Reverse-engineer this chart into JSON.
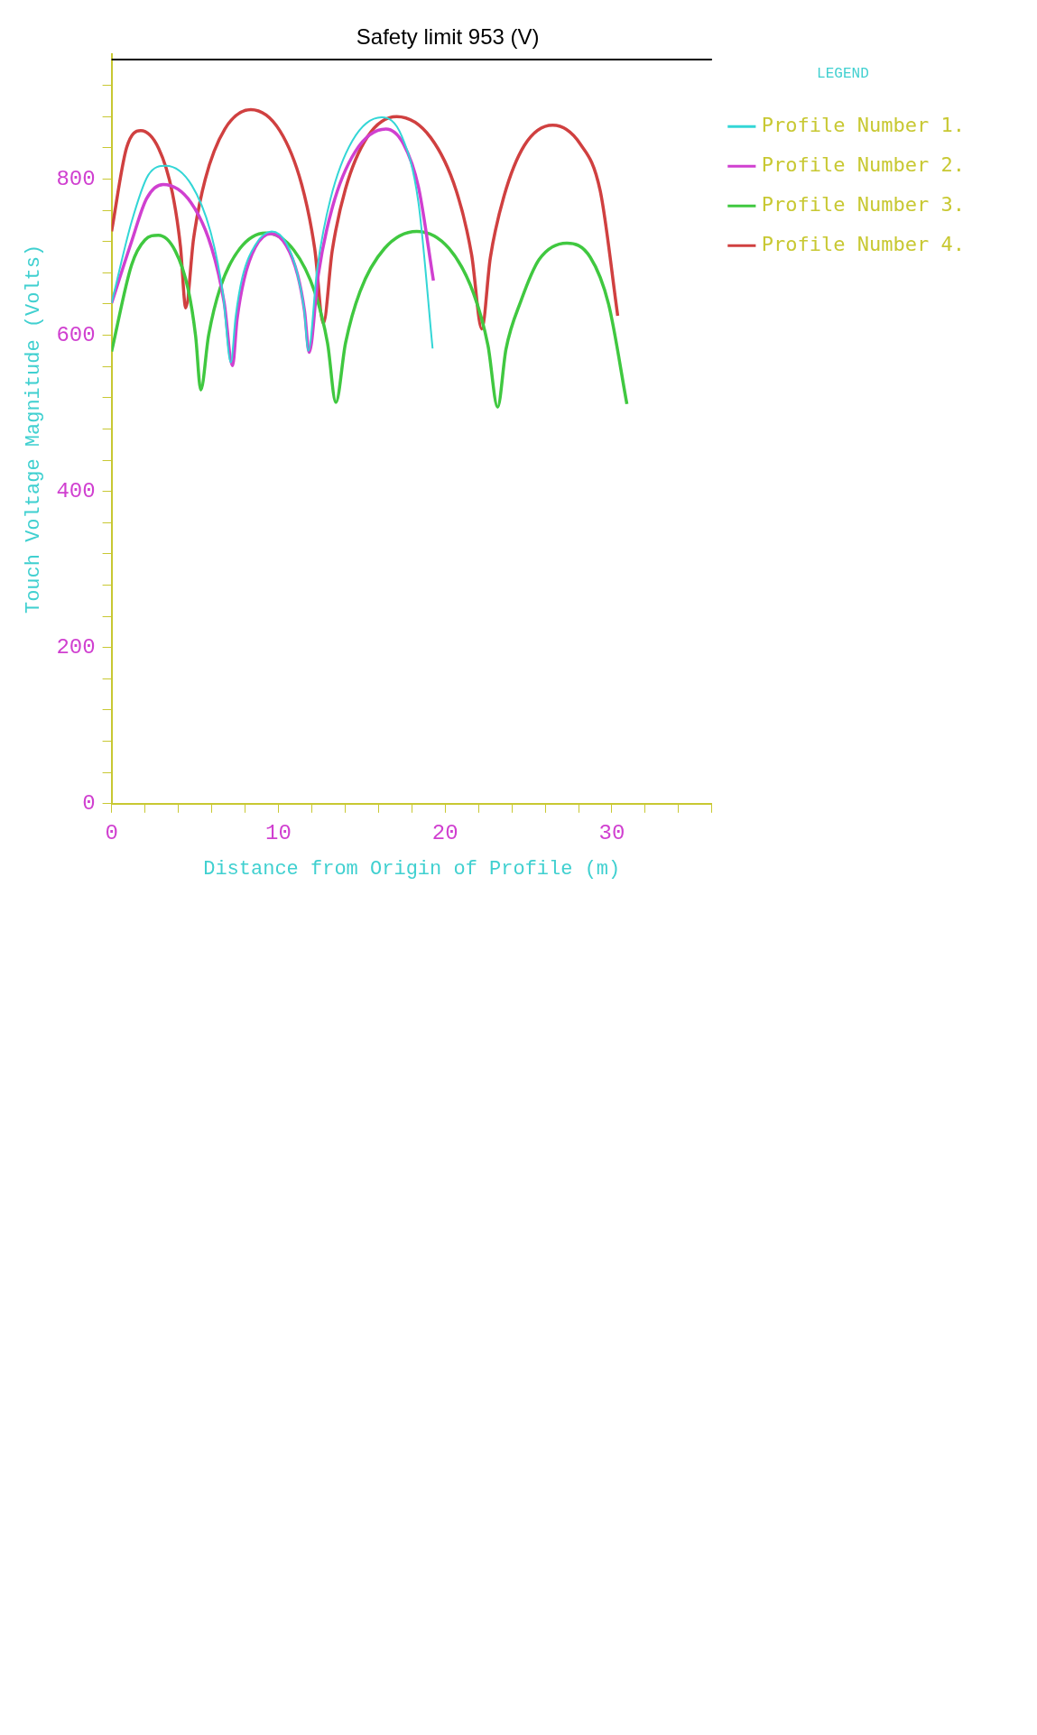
{
  "chart_data": {
    "type": "line",
    "xlabel": "Distance from Origin of Profile (m)",
    "ylabel": "Touch Voltage Magnitude (Volts)",
    "xlim": [
      0,
      36
    ],
    "xticks": [
      0,
      {
        "value": 2,
        "label": null
      },
      {
        "value": 4,
        "label": null
      },
      {
        "value": 6,
        "label": null
      },
      {
        "value": 8,
        "label": null
      },
      10,
      {
        "value": 12,
        "label": null
      },
      {
        "value": 14,
        "label": null
      },
      {
        "value": 16,
        "label": null
      },
      {
        "value": 18,
        "label": null
      },
      20,
      {
        "value": 22,
        "label": null
      },
      {
        "value": 24,
        "label": null
      },
      {
        "value": 26,
        "label": null
      },
      {
        "value": 28,
        "label": null
      },
      30,
      {
        "value": 32,
        "label": null
      },
      {
        "value": 34,
        "label": null
      },
      {
        "value": 36,
        "label": null
      }
    ],
    "ylim": [
      0,
      960
    ],
    "yticks": [
      0,
      {
        "value": 40,
        "label": null
      },
      {
        "value": 80,
        "label": null
      },
      {
        "value": 120,
        "label": null
      },
      {
        "value": 160,
        "label": null
      },
      200,
      {
        "value": 240,
        "label": null
      },
      {
        "value": 280,
        "label": null
      },
      {
        "value": 320,
        "label": null
      },
      {
        "value": 360,
        "label": null
      },
      400,
      {
        "value": 440,
        "label": null
      },
      {
        "value": 480,
        "label": null
      },
      {
        "value": 520,
        "label": null
      },
      {
        "value": 560,
        "label": null
      },
      600,
      {
        "value": 640,
        "label": null
      },
      {
        "value": 680,
        "label": null
      },
      {
        "value": 720,
        "label": null
      },
      {
        "value": 760,
        "label": null
      },
      800,
      {
        "value": 840,
        "label": null
      },
      {
        "value": 880,
        "label": null
      },
      {
        "value": 920,
        "label": null
      }
    ],
    "legend": "right",
    "legend_title": "LEGEND",
    "ref_lines": [
      {
        "axis": "y",
        "value": 953,
        "label": "Safety limit 953 (V)",
        "color": "#000000"
      }
    ],
    "series": [
      {
        "name": "Profile Number 1.",
        "color": "#33d6d6",
        "x": [
          0,
          1.2,
          2.2,
          3.25,
          4.81,
          5.98,
          6.68,
          7.15,
          7.44,
          7.84,
          8.63,
          9.6,
          10.48,
          11.14,
          11.54,
          11.8,
          12.33,
          13.12,
          14.44,
          16.2,
          17.4,
          18.4,
          19.25
        ],
        "values": [
          641,
          745,
          805,
          817,
          792,
          729,
          653,
          565,
          624,
          674,
          716,
          733,
          718,
          679,
          634,
          580,
          685,
          774,
          849,
          879,
          855,
          770,
          583
        ]
      },
      {
        "name": "Profile Number 2.",
        "color": "#d040d0",
        "x": [
          0,
          1.2,
          2.1,
          3.1,
          4.76,
          6.0,
          6.75,
          7.25,
          7.53,
          7.94,
          8.63,
          9.55,
          10.47,
          11.16,
          11.57,
          11.85,
          12.4,
          13.23,
          14.61,
          16.45,
          17.5,
          18.4,
          19.3
        ],
        "values": [
          641,
          720,
          775,
          793,
          770,
          712,
          642,
          561,
          621,
          671,
          713,
          730,
          715,
          677,
          631,
          578,
          678,
          763,
          835,
          864,
          845,
          790,
          670
        ]
      },
      {
        "name": "Profile Number 3.",
        "color": "#40c840",
        "x": [
          0,
          1.2,
          2.0,
          2.8,
          3.82,
          4.59,
          5.04,
          5.35,
          5.82,
          6.52,
          7.69,
          9.25,
          10.93,
          12.19,
          12.95,
          13.45,
          14.03,
          14.9,
          16.36,
          18.3,
          20.24,
          21.7,
          22.57,
          23.15,
          23.65,
          24.55,
          25.64,
          27.3,
          28.7,
          29.8,
          30.9
        ],
        "values": [
          579,
          690,
          722,
          728,
          708,
          659,
          599,
          530,
          600,
          661,
          711,
          731,
          709,
          655,
          590,
          514,
          590,
          656,
          711,
          733,
          711,
          654,
          587,
          508,
          582,
          644,
          697,
          718,
          700,
          640,
          512
        ]
      },
      {
        "name": "Profile Number 4.",
        "color": "#d04040",
        "x": [
          0,
          0.9,
          1.75,
          2.83,
          3.64,
          4.13,
          4.45,
          4.92,
          5.62,
          6.79,
          8.35,
          10.09,
          11.4,
          12.18,
          12.7,
          13.23,
          14.02,
          15.34,
          17.1,
          19.14,
          20.67,
          21.59,
          22.2,
          22.71,
          23.53,
          24.75,
          26.45,
          28.1,
          29.3,
          30.35
        ],
        "values": [
          733,
          840,
          862,
          839,
          783,
          714,
          635,
          724,
          800,
          864,
          889,
          862,
          793,
          711,
          615,
          708,
          787,
          854,
          880,
          853,
          785,
          703,
          608,
          699,
          778,
          843,
          869,
          845,
          785,
          625
        ]
      }
    ]
  }
}
